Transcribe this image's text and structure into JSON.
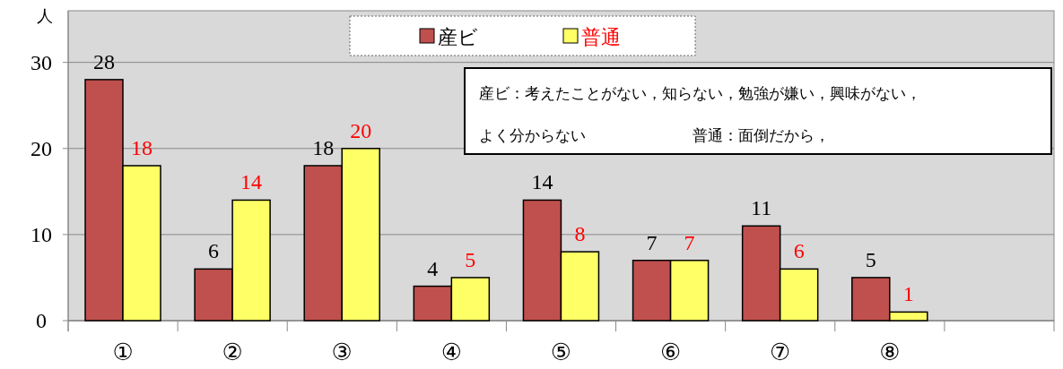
{
  "chart_data": {
    "type": "bar",
    "ylabel": "人",
    "categories": [
      "①",
      "②",
      "③",
      "④",
      "⑤",
      "⑥",
      "⑦",
      "⑧",
      null
    ],
    "series": [
      {
        "name": "産ビ",
        "color": "#c0504d",
        "values": [
          28,
          6,
          18,
          4,
          14,
          7,
          11,
          5,
          null
        ]
      },
      {
        "name": "普通",
        "color": "#ffff66",
        "values": [
          18,
          14,
          20,
          5,
          8,
          7,
          6,
          1,
          null
        ]
      }
    ],
    "ylim": [
      0,
      36
    ],
    "yticks": [
      0,
      10,
      20,
      30
    ],
    "grid": "y",
    "legend": "top",
    "data_labels": true,
    "annotations": [
      "産ビ：考えたことがない，知らない，勉強が嫌い，興味がない，",
      "よく分からない",
      "普通：面倒だから，"
    ]
  }
}
